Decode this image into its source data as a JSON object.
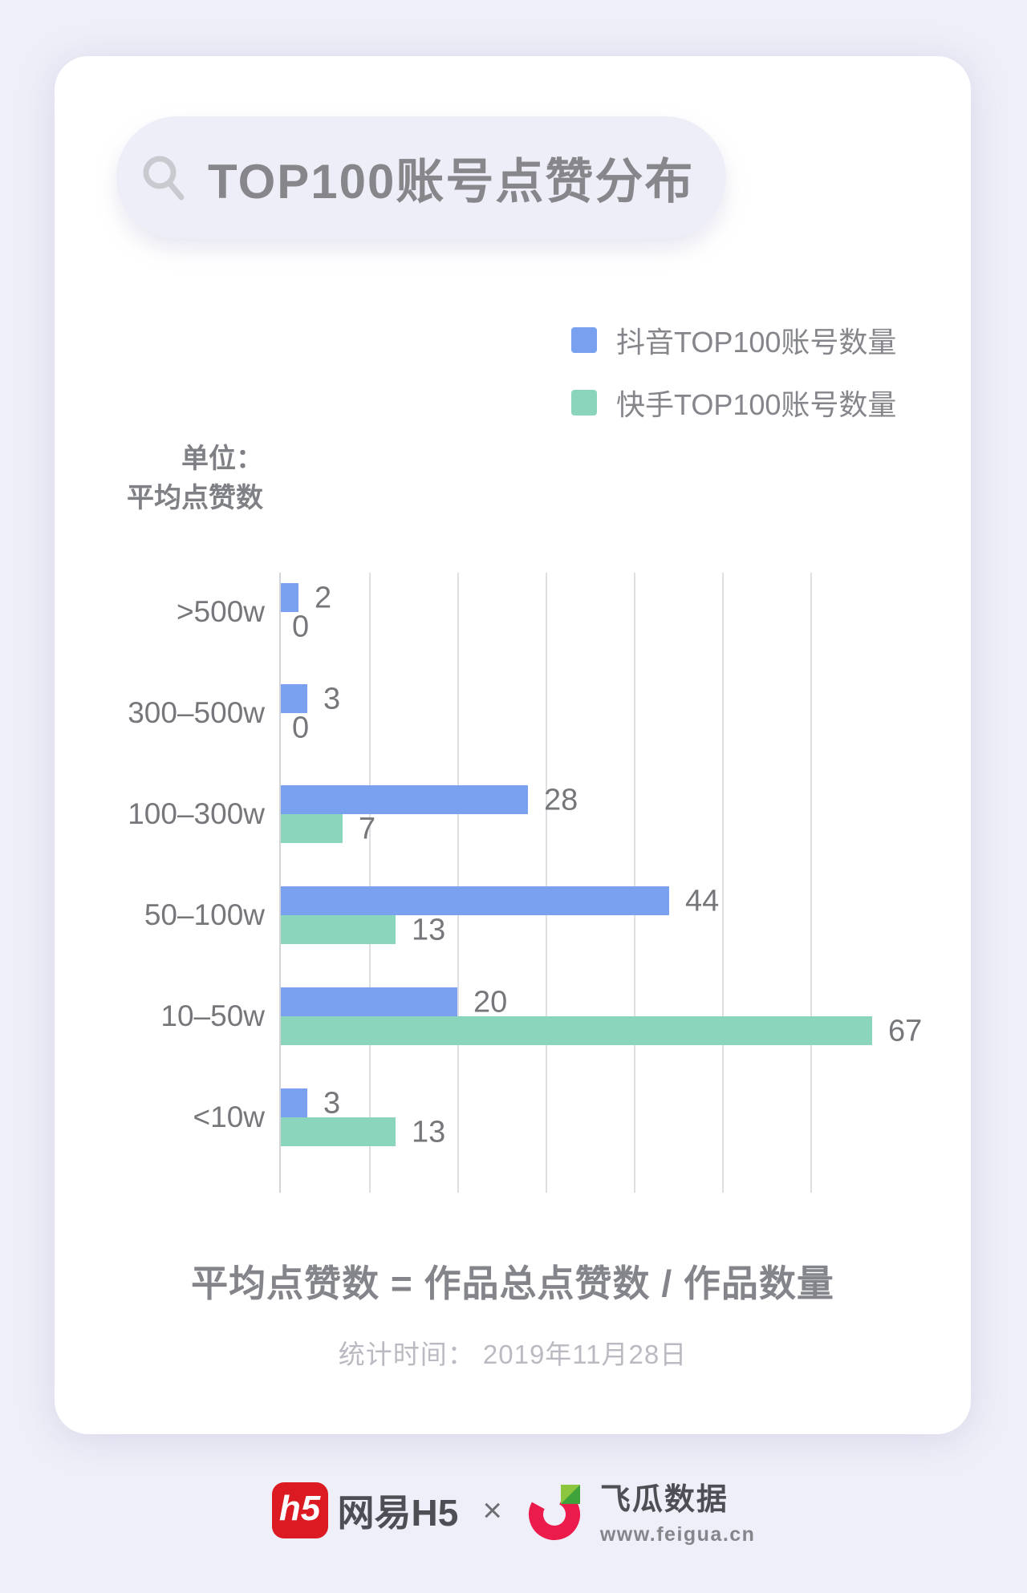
{
  "page_background": "#EFEFF9",
  "title": {
    "text": "TOP100账号点赞分布"
  },
  "unit": {
    "line1": "单位：",
    "line2": "平均点赞数"
  },
  "chart_data": {
    "type": "bar",
    "orientation": "horizontal",
    "title": "TOP100账号点赞分布",
    "unit_label": "单位：平均点赞数",
    "categories": [
      ">500w",
      "300–500w",
      "100–300w",
      "50–100w",
      "10–50w",
      "<10w"
    ],
    "series": [
      {
        "name": "抖音TOP100账号数量",
        "color": "#7AA0F0",
        "values": [
          2,
          3,
          28,
          44,
          20,
          3
        ]
      },
      {
        "name": "快手TOP100账号数量",
        "color": "#8AD5BC",
        "values": [
          0,
          0,
          7,
          13,
          67,
          13
        ]
      }
    ],
    "x_axis": {
      "min": 0,
      "max": 70,
      "gridline_step": 10,
      "gridlines_visible": true,
      "tick_labels_visible": false
    },
    "value_labels": true,
    "legend_position": "top-right"
  },
  "formula_note": "平均点赞数 = 作品总点赞数 / 作品数量",
  "stats_time": "统计时间： 2019年11月28日",
  "footer": {
    "netease_logo_text": "h5",
    "netease_logo_color": "#DC1A21",
    "netease_name": "网易H5",
    "separator": "×",
    "feigua_name": "飞瓜数据",
    "feigua_url": "www.feigua.cn",
    "feigua_logo_colors": {
      "arc": "#EB1C4C",
      "leaf_light": "#8CC63F",
      "leaf_dark": "#3FA33C"
    }
  }
}
